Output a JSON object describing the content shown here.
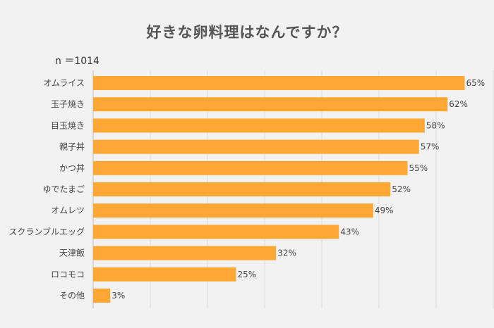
{
  "header": {
    "title": "好きな卵料理はなんですか？",
    "sample_size": "n ＝1014"
  },
  "chart_data": {
    "type": "bar",
    "orientation": "horizontal",
    "categories": [
      "オムライス",
      "玉子焼き",
      "目玉焼き",
      "親子丼",
      "かつ丼",
      "ゆでたまご",
      "オムレツ",
      "スクランブルエッグ",
      "天津飯",
      "ロコモコ",
      "その他"
    ],
    "values": [
      65,
      62,
      58,
      57,
      55,
      52,
      49,
      43,
      32,
      25,
      3
    ],
    "value_labels": [
      "65%",
      "62%",
      "58%",
      "57%",
      "55%",
      "52%",
      "49%",
      "43%",
      "32%",
      "25%",
      "3%"
    ],
    "title": "好きな卵料理はなんですか？",
    "xlabel": "",
    "ylabel": "",
    "xlim": [
      0,
      70
    ],
    "grid": true,
    "bar_color": "#ffa733"
  }
}
